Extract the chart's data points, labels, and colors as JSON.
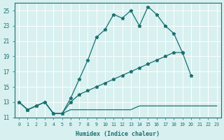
{
  "xlabel": "Humidex (Indice chaleur)",
  "x": [
    0,
    1,
    2,
    3,
    4,
    5,
    6,
    7,
    8,
    9,
    10,
    11,
    12,
    13,
    14,
    15,
    16,
    17,
    18,
    19,
    20,
    21,
    22,
    23
  ],
  "line1_y": [
    13,
    12,
    12.5,
    13,
    11.5,
    11.5,
    13.5,
    16,
    18.5,
    21.5,
    22.5,
    24.5,
    24,
    25,
    23,
    25.5,
    24.5,
    23,
    22,
    19.5,
    null,
    null,
    null,
    null
  ],
  "line2_y": [
    13,
    12,
    12.5,
    13,
    11.5,
    11.5,
    13,
    14,
    14.5,
    15,
    15.5,
    16,
    16.5,
    17,
    17.5,
    18,
    18.5,
    19,
    19.5,
    19.5,
    16.5,
    null,
    null,
    null
  ],
  "line3_y": [
    13,
    12,
    12.5,
    13,
    11.5,
    11.5,
    12,
    12,
    12,
    12,
    12,
    12,
    12,
    12,
    12.5,
    12.5,
    12.5,
    12.5,
    12.5,
    12.5,
    12.5,
    12.5,
    12.5,
    12.5
  ],
  "line1_has_markers": true,
  "line2_has_markers": true,
  "line3_has_markers": false,
  "bg_color": "#d8f0f0",
  "grid_color": "#ffffff",
  "line_color": "#1a7070",
  "ylim": [
    11,
    26
  ],
  "yticks": [
    11,
    13,
    15,
    17,
    19,
    21,
    23,
    25
  ],
  "xlim": [
    -0.5,
    23.5
  ]
}
